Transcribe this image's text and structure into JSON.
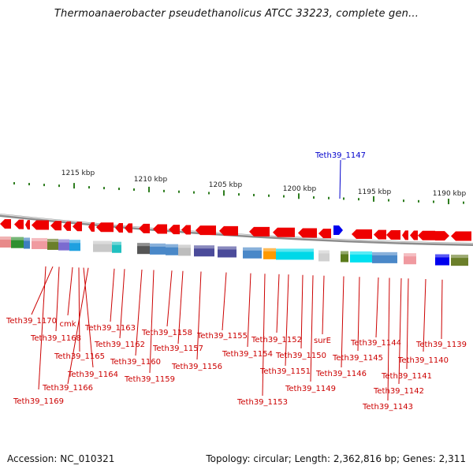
{
  "title": "Thermoanaerobacter pseudethanolicus ATCC 33223, complete gen...",
  "footer": {
    "accession": "Accession: NC_010321",
    "topology": "Topology: circular; Length: 2,362,816 bp; Genes: 2,311"
  },
  "colors": {
    "gene_arrow": "#ee0000",
    "label_red": "#cc0000",
    "highlight_blue": "#0000cc",
    "tick_green": "#2e7d1f",
    "backbone": "#999999"
  },
  "scale_labels": [
    "1215 kbp",
    "1210 kbp",
    "1205 kbp",
    "1200 kbp",
    "1195 kbp",
    "1190 kbp"
  ],
  "highlight_gene": "Teth39_1147",
  "gene_labels": [
    "Teth39_1170",
    "cmk",
    "Teth39_1168",
    "Teth39_1165",
    "Teth39_1164",
    "Teth39_1166",
    "Teth39_1169",
    "Teth39_1163",
    "Teth39_1162",
    "Teth39_1160",
    "Teth39_1159",
    "Teth39_1158",
    "Teth39_1157",
    "Teth39_1156",
    "Teth39_1155",
    "Teth39_1154",
    "Teth39_1153",
    "Teth39_1152",
    "Teth39_1151",
    "Teth39_1150",
    "surE",
    "Teth39_1149",
    "Teth39_1146",
    "Teth39_1145",
    "Teth39_1144",
    "Teth39_1143",
    "Teth39_1142",
    "Teth39_1141",
    "Teth39_1140",
    "Teth39_1139"
  ]
}
